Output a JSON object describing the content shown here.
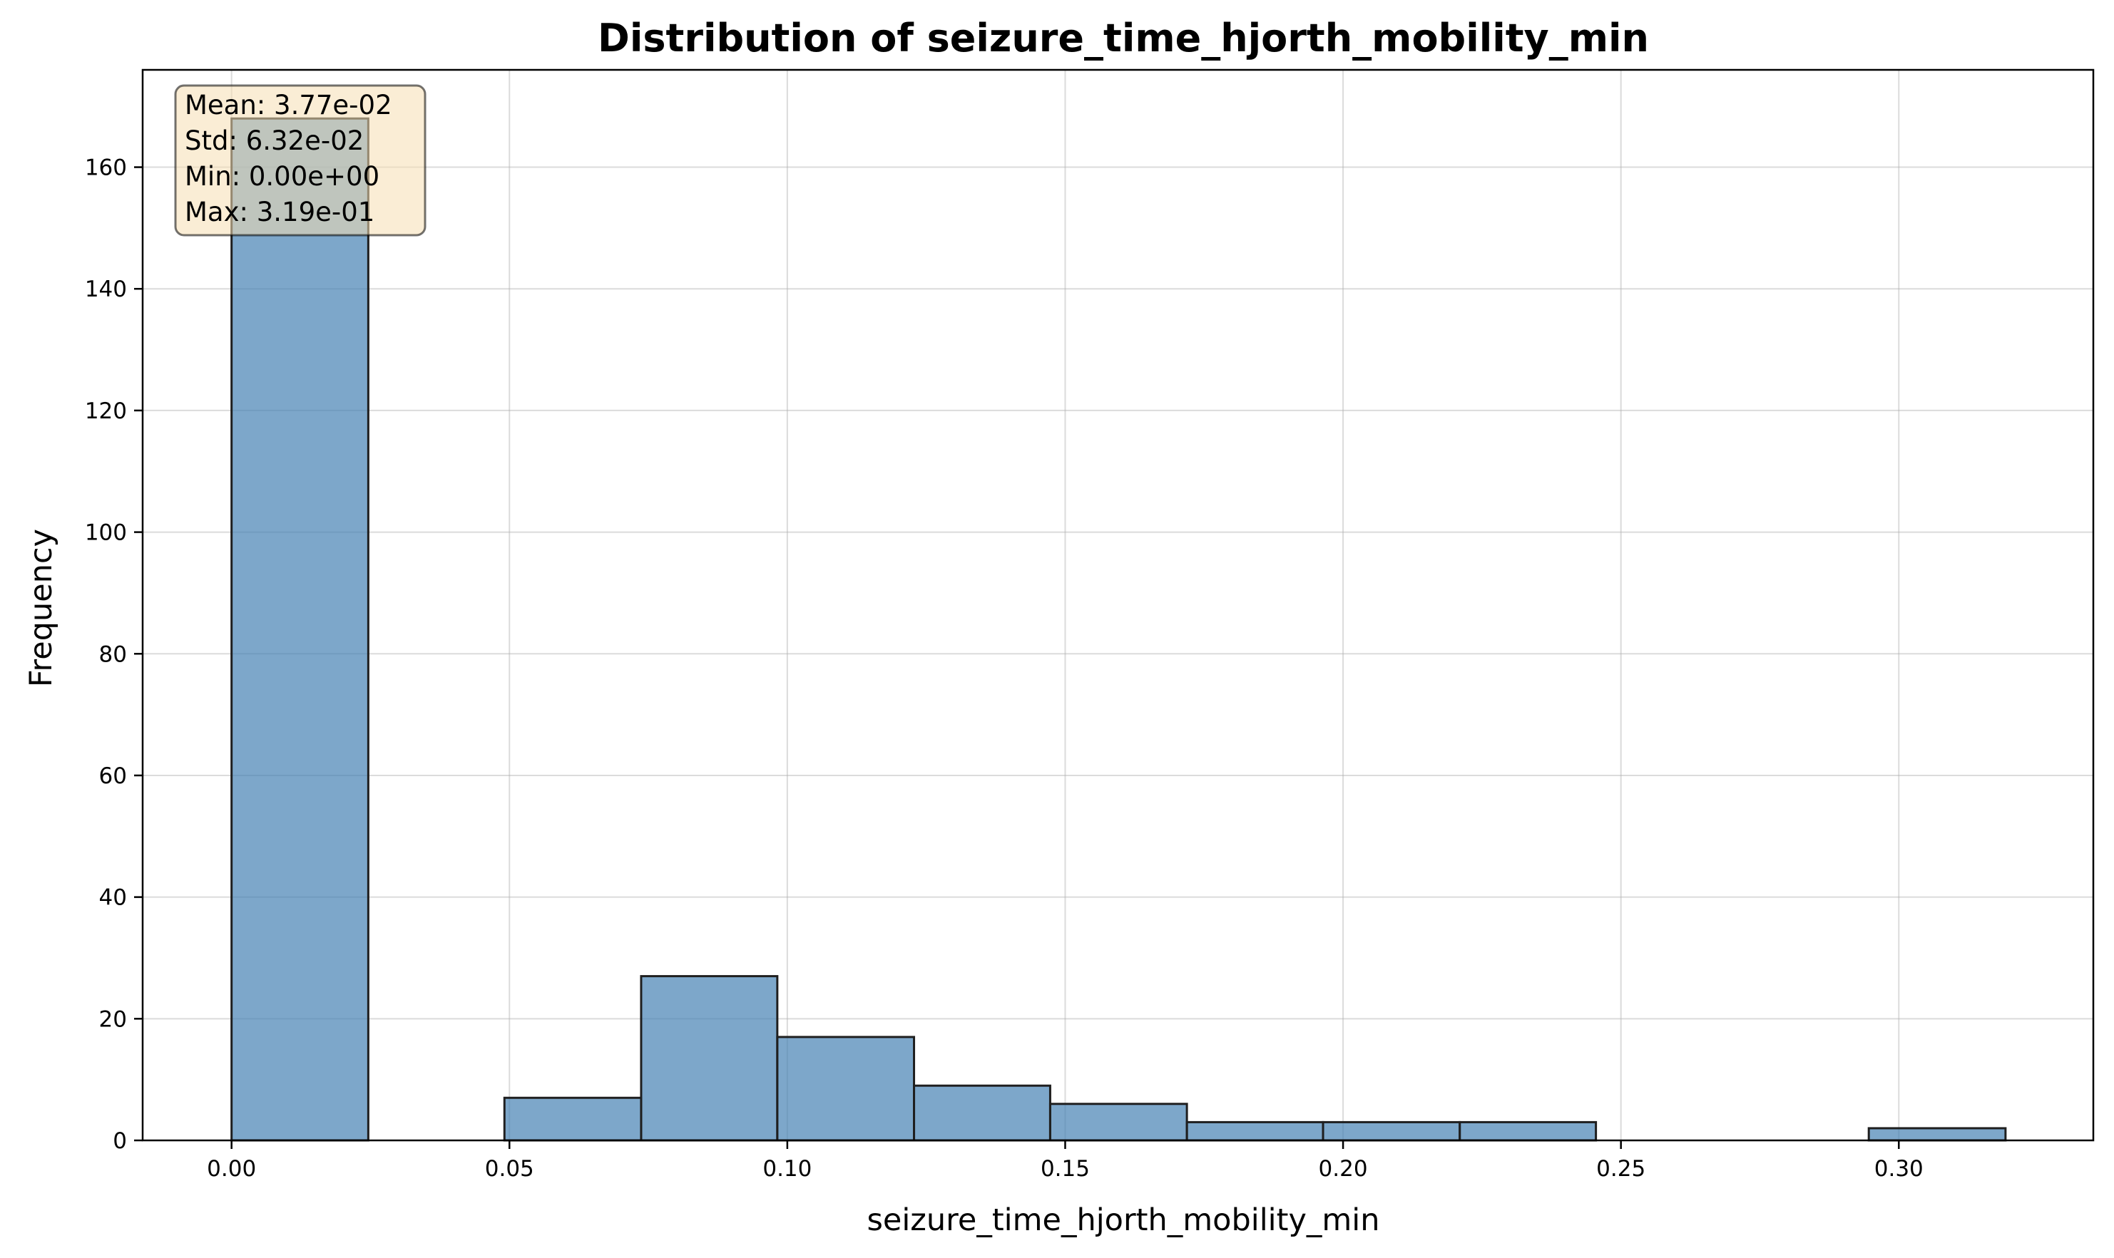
{
  "chart_data": {
    "type": "bar",
    "title": "Distribution of seizure_time_hjorth_mobility_min",
    "xlabel": "seizure_time_hjorth_mobility_min",
    "ylabel": "Frequency",
    "xlim": [
      -0.016,
      0.335
    ],
    "ylim": [
      0,
      176
    ],
    "xticks": [
      0.0,
      0.05,
      0.1,
      0.15,
      0.2,
      0.25,
      0.3
    ],
    "xtick_labels": [
      "0.00",
      "0.05",
      "0.10",
      "0.15",
      "0.20",
      "0.25",
      "0.30"
    ],
    "yticks": [
      0,
      20,
      40,
      60,
      80,
      100,
      120,
      140,
      160
    ],
    "ytick_labels": [
      "0",
      "20",
      "40",
      "60",
      "80",
      "100",
      "120",
      "140",
      "160"
    ],
    "grid": true,
    "bar_color": "#4682b4",
    "bins": [
      {
        "x0": 0.0,
        "x1": 0.0246,
        "count": 168
      },
      {
        "x0": 0.0491,
        "x1": 0.0737,
        "count": 7
      },
      {
        "x0": 0.0737,
        "x1": 0.0982,
        "count": 27
      },
      {
        "x0": 0.0982,
        "x1": 0.1228,
        "count": 17
      },
      {
        "x0": 0.1228,
        "x1": 0.1473,
        "count": 9
      },
      {
        "x0": 0.1473,
        "x1": 0.1719,
        "count": 6
      },
      {
        "x0": 0.1719,
        "x1": 0.1964,
        "count": 3
      },
      {
        "x0": 0.1964,
        "x1": 0.221,
        "count": 3
      },
      {
        "x0": 0.221,
        "x1": 0.2455,
        "count": 3
      },
      {
        "x0": 0.2946,
        "x1": 0.3192,
        "count": 2
      }
    ],
    "stats_box": {
      "lines": [
        "Mean: 3.77e-02",
        "Std: 6.32e-02",
        "Min: 0.00e+00",
        "Max: 3.19e-01"
      ],
      "background": "#f5deb3",
      "placement": "top-left"
    }
  }
}
